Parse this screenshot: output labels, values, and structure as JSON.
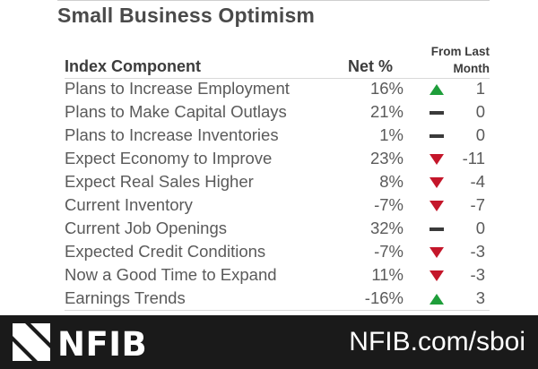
{
  "title": "Small Business Optimism",
  "headers": {
    "component": "Index Component",
    "net": "Net %",
    "change": [
      "From Last",
      "Month"
    ]
  },
  "colors": {
    "up": "#1e9e3a",
    "down": "#c4162a",
    "flat": "#3a3a3a",
    "footer_bg": "#1a1a1a"
  },
  "rows": [
    {
      "component": "Plans to Increase Employment",
      "net": "16%",
      "direction": "up",
      "change": "1"
    },
    {
      "component": "Plans to Make Capital Outlays",
      "net": "21%",
      "direction": "flat",
      "change": "0"
    },
    {
      "component": "Plans to Increase Inventories",
      "net": "1%",
      "direction": "flat",
      "change": "0"
    },
    {
      "component": "Expect Economy to Improve",
      "net": "23%",
      "direction": "down",
      "change": "-11"
    },
    {
      "component": "Expect Real Sales Higher",
      "net": "8%",
      "direction": "down",
      "change": "-4"
    },
    {
      "component": "Current Inventory",
      "net": "-7%",
      "direction": "down",
      "change": "-7"
    },
    {
      "component": "Current Job Openings",
      "net": "32%",
      "direction": "flat",
      "change": "0"
    },
    {
      "component": "Expected Credit Conditions",
      "net": "-7%",
      "direction": "down",
      "change": "-3"
    },
    {
      "component": "Now a Good Time to Expand",
      "net": "11%",
      "direction": "down",
      "change": "-3"
    },
    {
      "component": "Earnings Trends",
      "net": "-16%",
      "direction": "up",
      "change": "3"
    }
  ],
  "footer": {
    "logo_text": "NFIB",
    "logo_icon": "nfib-logo-icon",
    "url": "NFIB.com/sboi"
  }
}
